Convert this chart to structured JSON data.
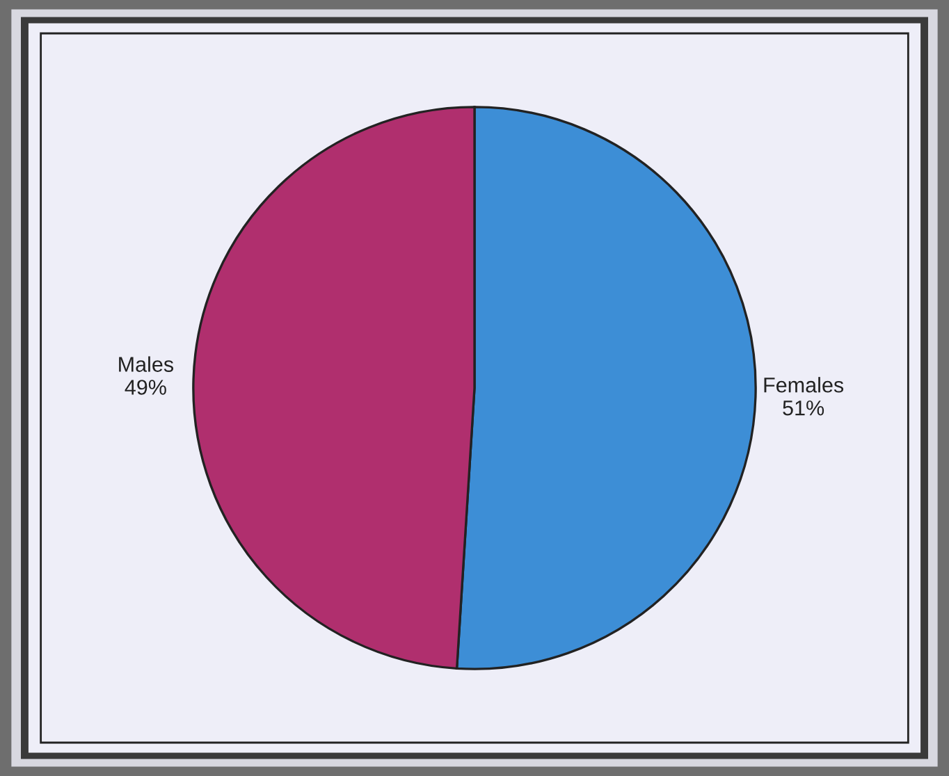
{
  "chart_data": {
    "type": "pie",
    "categories": [
      "Females",
      "Males"
    ],
    "values": [
      51,
      49
    ],
    "colors": [
      "#3d8ed6",
      "#b02f6e"
    ],
    "value_labels": [
      "51%",
      "49%"
    ]
  }
}
